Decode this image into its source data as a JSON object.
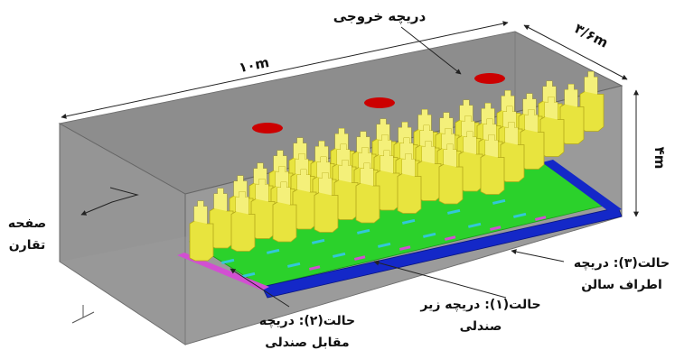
{
  "labels": {
    "outlet_vent": "دریچه خروجی",
    "length": "۱۰m",
    "width": "۳/۶m",
    "height": "۴m",
    "symmetry_plane_line1": "صفحه",
    "symmetry_plane_line2": "تقارن",
    "case3_line1": "حالت(۳): دریچه",
    "case3_line2": "اطراف سالن",
    "case1_line1": "حالت(۱): دریچه زیر",
    "case1_line2": "صندلی",
    "case2_line1": "حالت(۲): دریچه",
    "case2_line2": "مقابل صندلی"
  },
  "colors": {
    "room": "#8f8f8f",
    "vent": "#cc0000",
    "seat": "#e6e23a",
    "floor_green": "#22cc22",
    "floor_blue": "#1428c8",
    "case2_vents": "#d24fd2",
    "case1_vents": "#33c8d8"
  }
}
